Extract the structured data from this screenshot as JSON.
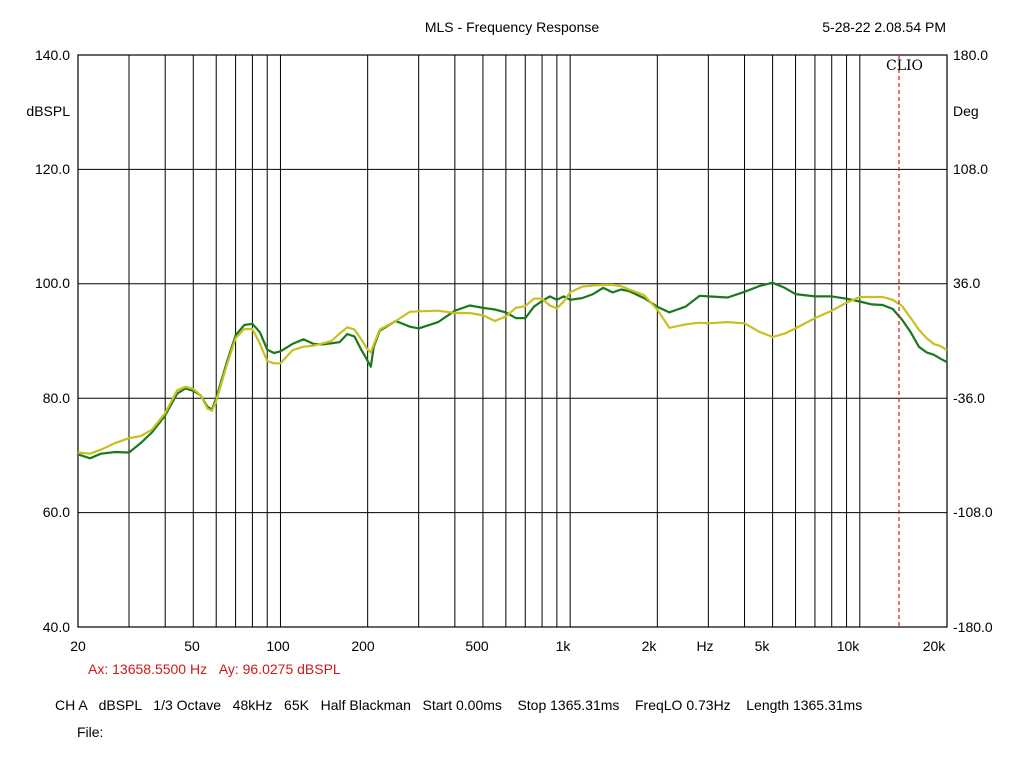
{
  "header": {
    "title": "MLS - Frequency Response",
    "timestamp": "5-28-22 2.08.54 PM",
    "brand": "CLIO"
  },
  "axes": {
    "left_unit": "dBSPL",
    "right_unit": "Deg",
    "left_ticks": [
      "140.0",
      "120.0",
      "100.0",
      "80.0",
      "60.0",
      "40.0"
    ],
    "right_ticks": [
      "180.0",
      "108.0",
      "36.0",
      "-36.0",
      "-108.0",
      "-180.0"
    ],
    "x_unit": "Hz",
    "x_ticks": [
      "20",
      "50",
      "100",
      "200",
      "500",
      "1k",
      "2k",
      "5k",
      "10k",
      "20k"
    ]
  },
  "cursor": {
    "frequency_hz": 13658.55,
    "readout_x": "Ax: 13658.5500 Hz",
    "readout_y": "Ay: 96.0275 dBSPL"
  },
  "footer": {
    "settings": "CH A   dBSPL   1/3 Octave   48kHz   65K   Half Blackman   Start 0.00ms    Stop 1365.31ms    FreqLO 0.73Hz    Length 1365.31ms",
    "file": "File:"
  },
  "colors": {
    "series_green": "#1a7a1a",
    "series_yellow": "#c8c020",
    "cursor": "#d01818",
    "grid": "#000000"
  },
  "chart_data": {
    "type": "line",
    "xscale": "log",
    "xlim": [
      20,
      20000
    ],
    "ylim": [
      40,
      140
    ],
    "y2lim": [
      -180,
      180
    ],
    "grid": true,
    "ylabel": "dBSPL",
    "y2label": "Deg",
    "series": [
      {
        "color": "#1a7a1a",
        "x": [
          20,
          22,
          24,
          27,
          30,
          33,
          36,
          40,
          44,
          47,
          50,
          53,
          56,
          58,
          60,
          65,
          70,
          75,
          80,
          85,
          90,
          95,
          100,
          110,
          120,
          130,
          140,
          150,
          160,
          170,
          180,
          190,
          200,
          205,
          210,
          220,
          250,
          280,
          300,
          350,
          400,
          450,
          500,
          550,
          600,
          650,
          700,
          750,
          800,
          850,
          900,
          950,
          1000,
          1100,
          1200,
          1300,
          1400,
          1500,
          1600,
          1800,
          2000,
          2200,
          2500,
          2800,
          3000,
          3500,
          4000,
          4500,
          5000,
          5500,
          6000,
          7000,
          8000,
          9000,
          10000,
          11000,
          12000,
          13000,
          14000,
          15000,
          16000,
          17000,
          18000,
          19000,
          20000
        ],
        "y": [
          70.2,
          69.5,
          70.3,
          70.6,
          70.5,
          72.2,
          74,
          77,
          80.8,
          81.7,
          81.3,
          80.5,
          78.5,
          78,
          80,
          86,
          91,
          92.8,
          93,
          91.5,
          88.5,
          87.9,
          88.2,
          89.5,
          90.3,
          89.5,
          89.4,
          89.6,
          89.8,
          91.2,
          90.8,
          88.5,
          86.5,
          85.5,
          89,
          91.8,
          93.5,
          92.5,
          92.2,
          93.3,
          95.3,
          96.2,
          95.8,
          95.5,
          95,
          94,
          94,
          96,
          97,
          97.8,
          97.2,
          97.8,
          97.2,
          97.5,
          98.2,
          99.3,
          98.5,
          99,
          98.7,
          97.5,
          96,
          95,
          96,
          97.9,
          97.8,
          97.6,
          98.6,
          99.6,
          100.2,
          99.3,
          98.2,
          97.8,
          97.8,
          97.4,
          96.9,
          96.4,
          96.3,
          95.6,
          93.7,
          91.5,
          89,
          88,
          87.6,
          86.9,
          86.3
        ]
      },
      {
        "color": "#c8c020",
        "x": [
          20,
          22,
          24,
          27,
          30,
          33,
          36,
          40,
          44,
          47,
          50,
          53,
          56,
          58,
          60,
          65,
          70,
          75,
          80,
          85,
          90,
          95,
          100,
          110,
          120,
          130,
          140,
          150,
          160,
          170,
          180,
          190,
          200,
          205,
          210,
          220,
          250,
          280,
          300,
          350,
          400,
          450,
          500,
          550,
          600,
          650,
          700,
          750,
          800,
          850,
          900,
          950,
          1000,
          1100,
          1200,
          1300,
          1400,
          1500,
          1600,
          1800,
          2000,
          2200,
          2500,
          2800,
          3000,
          3500,
          4000,
          4500,
          5000,
          5500,
          6000,
          7000,
          8000,
          9000,
          10000,
          11000,
          12000,
          13000,
          14000,
          15000,
          16000,
          17000,
          18000,
          19000,
          20000
        ],
        "y": [
          70.5,
          70.3,
          71,
          72.2,
          73,
          73.4,
          74.5,
          77.4,
          81.4,
          82,
          81.6,
          80.5,
          78.2,
          77.8,
          79.5,
          85.5,
          90.5,
          92.1,
          92.1,
          89.5,
          86.5,
          86.1,
          86.1,
          88.4,
          89,
          89.2,
          89.6,
          90,
          91.3,
          92.4,
          92,
          90.3,
          88.5,
          88,
          89.4,
          92,
          93.5,
          95.1,
          95.2,
          95.3,
          94.9,
          94.9,
          94.5,
          93.5,
          94.3,
          95.8,
          96.1,
          97.4,
          97.4,
          96.2,
          95.7,
          96.9,
          98.5,
          99.5,
          99.7,
          99.8,
          99.8,
          99.6,
          99,
          98,
          95.5,
          92.3,
          92.9,
          93.2,
          93.1,
          93.3,
          93.1,
          91.6,
          90.7,
          91.3,
          92.2,
          94,
          95.3,
          96.7,
          97.7,
          97.7,
          97.7,
          97.2,
          96.1,
          94,
          92,
          90.5,
          89.5,
          89.1,
          88.4
        ]
      }
    ]
  }
}
